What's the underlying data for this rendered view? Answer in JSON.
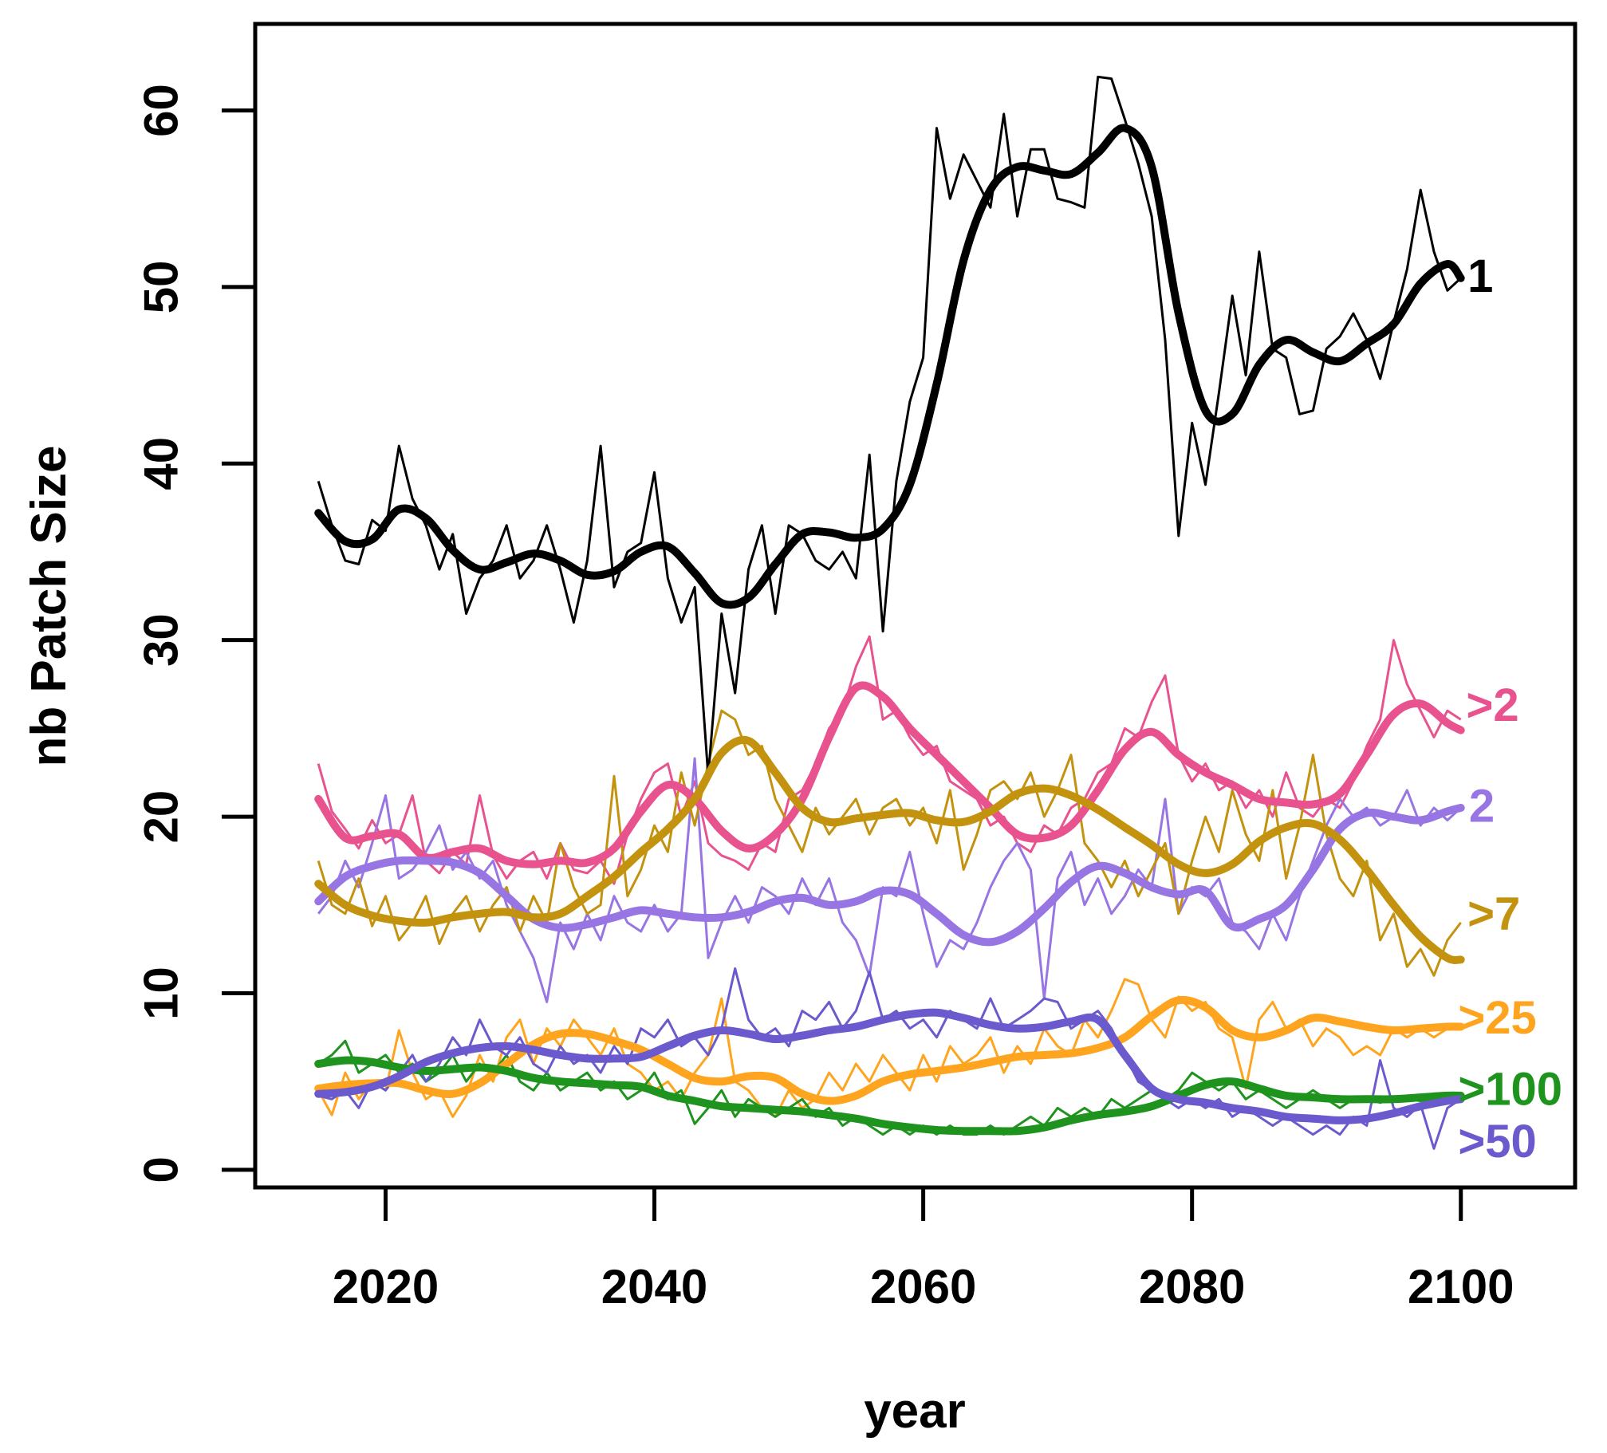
{
  "chart_data": {
    "type": "line",
    "title": "",
    "xlabel": "year",
    "ylabel": "nb Patch Size",
    "x_ticks": [
      2020,
      2040,
      2060,
      2080,
      2100
    ],
    "y_ticks": [
      0,
      10,
      20,
      30,
      40,
      50,
      60
    ],
    "xlim": [
      2010.3,
      2108.5
    ],
    "ylim": [
      -1.0,
      64.9
    ],
    "grid": "off",
    "legend_position": "right-edge-inline",
    "x": [
      2015,
      2016,
      2017,
      2018,
      2019,
      2020,
      2021,
      2022,
      2023,
      2024,
      2025,
      2026,
      2027,
      2028,
      2029,
      2030,
      2031,
      2032,
      2033,
      2034,
      2035,
      2036,
      2037,
      2038,
      2039,
      2040,
      2041,
      2042,
      2043,
      2044,
      2045,
      2046,
      2047,
      2048,
      2049,
      2050,
      2051,
      2052,
      2053,
      2054,
      2055,
      2056,
      2057,
      2058,
      2059,
      2060,
      2061,
      2062,
      2063,
      2064,
      2065,
      2066,
      2067,
      2068,
      2069,
      2070,
      2071,
      2072,
      2073,
      2074,
      2075,
      2076,
      2077,
      2078,
      2079,
      2080,
      2081,
      2082,
      2083,
      2084,
      2085,
      2086,
      2087,
      2088,
      2089,
      2090,
      2091,
      2092,
      2093,
      2094,
      2095,
      2096,
      2097,
      2098,
      2099,
      2100
    ],
    "smooth_x": [
      2015,
      2017,
      2019,
      2021,
      2023,
      2025,
      2027,
      2029,
      2031,
      2033,
      2035,
      2037,
      2039,
      2041,
      2043,
      2045,
      2047,
      2049,
      2051,
      2053,
      2055,
      2057,
      2059,
      2061,
      2063,
      2065,
      2067,
      2069,
      2071,
      2073,
      2075,
      2077,
      2079,
      2081,
      2083,
      2085,
      2087,
      2089,
      2091,
      2093,
      2095,
      2097,
      2099,
      2100
    ],
    "series": [
      {
        "name": "gt2",
        "label": ">2",
        "color": "#E8538F",
        "label_pos": {
          "year": 2100.4,
          "value": 26.3
        },
        "thin": [
          23.0,
          20.3,
          19.3,
          18.2,
          19.8,
          18.5,
          19.0,
          21.2,
          17.5,
          16.8,
          18.0,
          17.3,
          21.2,
          17.8,
          16.5,
          17.5,
          18.0,
          16.5,
          18.5,
          17.0,
          16.8,
          17.5,
          16.2,
          19.0,
          21.0,
          22.5,
          23.0,
          20.0,
          22.0,
          18.5,
          17.8,
          17.5,
          17.0,
          18.5,
          18.0,
          21.0,
          21.5,
          23.0,
          25.0,
          26.0,
          28.5,
          30.2,
          25.5,
          26.0,
          24.5,
          23.5,
          24.0,
          22.0,
          21.5,
          21.0,
          19.5,
          20.0,
          18.5,
          18.0,
          19.5,
          19.0,
          20.5,
          21.0,
          22.5,
          23.0,
          25.0,
          24.5,
          26.5,
          28.0,
          23.5,
          22.0,
          23.0,
          21.5,
          22.0,
          20.5,
          21.5,
          20.0,
          22.5,
          20.5,
          20.0,
          21.0,
          20.5,
          22.0,
          24.0,
          25.5,
          30.0,
          27.5,
          26.0,
          24.5,
          26.0,
          25.5
        ],
        "smooth": [
          21.0,
          18.8,
          18.9,
          19.0,
          17.7,
          18.0,
          18.2,
          17.5,
          17.3,
          17.5,
          17.4,
          18.2,
          20.3,
          21.8,
          21.0,
          19.2,
          18.2,
          19.0,
          21.0,
          24.5,
          27.3,
          26.8,
          25.0,
          23.5,
          22.0,
          20.5,
          19.0,
          18.8,
          19.5,
          21.5,
          23.8,
          24.8,
          23.5,
          22.5,
          21.8,
          21.0,
          20.8,
          20.7,
          21.3,
          23.5,
          25.8,
          26.4,
          25.3,
          24.9
        ]
      },
      {
        "name": "2",
        "label": "2",
        "color": "#9775E3",
        "label_pos": {
          "year": 2100.6,
          "value": 20.6
        },
        "thin": [
          14.5,
          15.5,
          17.5,
          16.0,
          18.5,
          21.2,
          16.5,
          17.0,
          18.0,
          19.5,
          17.0,
          18.0,
          16.5,
          17.5,
          15.0,
          13.5,
          12.0,
          9.5,
          14.0,
          12.5,
          14.5,
          13.0,
          15.5,
          14.0,
          13.5,
          15.0,
          13.5,
          14.5,
          23.3,
          12.0,
          14.0,
          15.5,
          14.0,
          16.0,
          15.5,
          14.5,
          16.5,
          15.0,
          16.5,
          14.0,
          13.0,
          11.0,
          16.0,
          15.5,
          18.0,
          14.5,
          11.5,
          13.0,
          12.5,
          14.0,
          16.0,
          17.5,
          18.5,
          17.0,
          9.7,
          16.5,
          18.0,
          15.0,
          16.5,
          14.5,
          15.5,
          17.0,
          16.0,
          21.0,
          14.5,
          16.0,
          15.5,
          16.5,
          14.0,
          13.5,
          12.5,
          14.5,
          13.0,
          15.5,
          17.5,
          19.5,
          21.0,
          20.0,
          20.5,
          19.5,
          20.0,
          21.5,
          19.5,
          20.5,
          19.8,
          20.5
        ],
        "smooth": [
          15.2,
          16.6,
          17.2,
          17.5,
          17.5,
          17.4,
          16.8,
          15.5,
          14.2,
          13.7,
          13.9,
          14.3,
          14.7,
          14.5,
          14.3,
          14.3,
          14.6,
          15.2,
          15.4,
          15.0,
          15.2,
          15.8,
          15.6,
          14.5,
          13.3,
          12.9,
          13.5,
          14.8,
          16.3,
          17.2,
          16.8,
          16.0,
          15.6,
          15.8,
          13.8,
          14.2,
          15.0,
          17.0,
          19.3,
          20.2,
          20.0,
          19.8,
          20.3,
          20.5
        ]
      },
      {
        "name": "gt7",
        "label": ">7",
        "color": "#C3920E",
        "label_pos": {
          "year": 2100.5,
          "value": 14.5
        },
        "thin": [
          17.5,
          15.0,
          14.5,
          16.5,
          13.8,
          15.5,
          13.0,
          14.0,
          15.5,
          12.8,
          14.5,
          15.5,
          13.5,
          15.0,
          16.0,
          13.5,
          15.5,
          14.0,
          18.5,
          16.0,
          14.5,
          15.0,
          22.3,
          15.5,
          17.0,
          19.5,
          18.0,
          22.5,
          19.5,
          23.0,
          26.0,
          25.5,
          23.5,
          24.0,
          21.0,
          19.5,
          18.0,
          20.5,
          19.0,
          20.0,
          21.0,
          19.0,
          20.5,
          21.0,
          19.5,
          20.5,
          18.5,
          21.5,
          17.0,
          19.0,
          21.5,
          22.0,
          21.0,
          22.5,
          20.0,
          21.5,
          23.5,
          18.5,
          17.5,
          16.0,
          17.5,
          15.5,
          17.0,
          18.5,
          14.5,
          17.5,
          20.0,
          18.0,
          21.5,
          19.0,
          17.5,
          21.5,
          16.5,
          19.5,
          23.5,
          19.0,
          16.5,
          15.5,
          17.5,
          13.0,
          14.5,
          11.5,
          12.5,
          11.0,
          13.0,
          14.0
        ],
        "smooth": [
          16.2,
          15.0,
          14.4,
          14.1,
          14.0,
          14.3,
          14.5,
          14.6,
          14.3,
          14.5,
          15.5,
          16.6,
          18.0,
          19.3,
          21.0,
          23.6,
          24.3,
          22.5,
          20.5,
          19.7,
          19.9,
          20.1,
          20.2,
          19.8,
          19.7,
          20.3,
          21.3,
          21.6,
          21.2,
          20.4,
          19.4,
          18.4,
          17.3,
          16.8,
          17.3,
          18.6,
          19.4,
          19.6,
          18.7,
          17.0,
          15.0,
          13.2,
          12.0,
          11.9
        ]
      },
      {
        "name": "gt25",
        "label": ">25",
        "color": "#FFA41E",
        "label_pos": {
          "year": 2099.8,
          "value": 8.6
        },
        "thin": [
          4.5,
          3.1,
          5.5,
          4.0,
          5.0,
          4.5,
          7.9,
          5.5,
          4.0,
          4.5,
          3.0,
          4.2,
          6.5,
          5.0,
          7.5,
          8.5,
          6.0,
          8.0,
          7.0,
          8.5,
          7.5,
          6.5,
          8.0,
          6.0,
          5.5,
          4.5,
          5.0,
          4.0,
          5.5,
          6.5,
          9.7,
          5.0,
          4.5,
          3.5,
          3.0,
          4.5,
          3.5,
          4.0,
          5.5,
          4.5,
          6.0,
          5.0,
          6.5,
          5.5,
          4.5,
          6.5,
          5.0,
          7.0,
          6.0,
          6.5,
          7.5,
          5.5,
          7.0,
          6.0,
          8.0,
          7.0,
          6.5,
          8.5,
          7.5,
          9.0,
          10.8,
          10.5,
          8.5,
          7.5,
          9.8,
          9.0,
          9.5,
          8.0,
          7.5,
          4.6,
          8.5,
          9.5,
          8.0,
          8.5,
          7.0,
          8.0,
          7.5,
          6.5,
          7.0,
          6.5,
          8.0,
          7.5,
          8.0,
          7.5,
          8.0,
          8.0
        ],
        "smooth": [
          4.6,
          4.8,
          4.9,
          4.9,
          4.5,
          4.3,
          4.9,
          6.0,
          7.1,
          7.7,
          7.7,
          7.3,
          6.8,
          6.0,
          5.2,
          5.0,
          5.3,
          5.2,
          4.3,
          3.9,
          4.2,
          5.0,
          5.4,
          5.6,
          5.8,
          6.1,
          6.4,
          6.5,
          6.6,
          6.9,
          7.5,
          8.7,
          9.6,
          9.2,
          7.9,
          7.5,
          7.9,
          8.6,
          8.4,
          8.1,
          7.9,
          8.0,
          8.1,
          8.1
        ]
      },
      {
        "name": "gt100",
        "label": ">100",
        "color": "#1E941E",
        "label_pos": {
          "year": 2099.8,
          "value": 4.55
        },
        "thin": [
          6.0,
          6.5,
          7.3,
          5.5,
          6.0,
          6.5,
          5.5,
          6.0,
          5.0,
          5.5,
          6.5,
          5.0,
          6.0,
          5.5,
          6.5,
          5.0,
          4.5,
          5.5,
          4.5,
          5.0,
          5.5,
          4.5,
          5.0,
          4.0,
          4.5,
          5.5,
          4.0,
          4.5,
          2.6,
          3.5,
          4.5,
          3.0,
          4.0,
          3.5,
          3.0,
          3.5,
          4.0,
          3.0,
          3.5,
          2.5,
          3.0,
          2.5,
          2.0,
          2.5,
          2.0,
          2.5,
          2.0,
          2.5,
          2.0,
          2.0,
          2.5,
          2.0,
          2.5,
          3.0,
          2.5,
          3.5,
          3.0,
          3.5,
          3.0,
          4.0,
          3.5,
          4.0,
          4.5,
          4.0,
          4.5,
          5.5,
          5.0,
          4.5,
          5.0,
          4.0,
          4.5,
          4.0,
          3.5,
          4.0,
          4.5,
          4.0,
          3.5,
          4.0,
          4.0,
          3.8,
          4.0,
          4.0,
          3.9,
          4.0,
          3.9,
          3.9
        ],
        "smooth": [
          6.0,
          6.2,
          6.1,
          5.8,
          5.6,
          5.7,
          5.8,
          5.6,
          5.2,
          5.0,
          4.9,
          4.8,
          4.7,
          4.2,
          3.9,
          3.6,
          3.5,
          3.4,
          3.3,
          3.1,
          2.9,
          2.6,
          2.4,
          2.25,
          2.2,
          2.2,
          2.2,
          2.4,
          2.8,
          3.1,
          3.3,
          3.6,
          4.2,
          4.8,
          5.0,
          4.6,
          4.2,
          4.1,
          4.0,
          4.0,
          4.0,
          4.1,
          4.2,
          4.2
        ]
      },
      {
        "name": "gt50",
        "label": ">50",
        "color": "#6A5ACD",
        "label_pos": {
          "year": 2099.8,
          "value": 1.6
        },
        "thin": [
          4.2,
          4.0,
          4.5,
          3.5,
          5.0,
          4.5,
          5.5,
          6.5,
          5.0,
          6.0,
          7.5,
          6.5,
          8.5,
          7.0,
          6.5,
          7.5,
          6.0,
          5.5,
          7.0,
          6.0,
          6.5,
          5.5,
          7.0,
          6.0,
          8.0,
          7.5,
          8.5,
          7.0,
          7.5,
          6.5,
          8.0,
          11.4,
          8.5,
          7.5,
          8.0,
          7.0,
          9.0,
          8.5,
          9.5,
          8.0,
          9.0,
          11.2,
          8.5,
          9.0,
          8.0,
          8.5,
          7.5,
          9.0,
          8.5,
          8.0,
          9.7,
          8.0,
          8.5,
          9.0,
          9.7,
          9.5,
          8.0,
          8.5,
          9.0,
          8.0,
          6.5,
          5.0,
          4.5,
          4.0,
          3.5,
          4.0,
          3.5,
          4.0,
          3.0,
          3.5,
          3.0,
          2.5,
          3.0,
          2.5,
          2.0,
          2.5,
          2.0,
          3.0,
          2.5,
          6.2,
          3.5,
          3.0,
          3.7,
          1.2,
          3.5,
          4.0
        ],
        "smooth": [
          4.3,
          4.4,
          4.7,
          5.3,
          6.1,
          6.6,
          6.9,
          7.0,
          6.8,
          6.5,
          6.3,
          6.3,
          6.4,
          7.0,
          7.6,
          7.9,
          7.7,
          7.4,
          7.6,
          7.9,
          8.1,
          8.5,
          8.8,
          8.9,
          8.6,
          8.2,
          8.0,
          8.1,
          8.4,
          8.5,
          6.5,
          4.6,
          4.0,
          3.8,
          3.5,
          3.3,
          3.0,
          2.9,
          2.8,
          2.9,
          3.2,
          3.6,
          3.9,
          4.0
        ]
      },
      {
        "name": "1",
        "label": "1",
        "color": "#000000",
        "label_pos": {
          "year": 2100.5,
          "value": 50.6
        },
        "thin": [
          39.0,
          36.5,
          34.5,
          34.3,
          36.8,
          36.2,
          41.0,
          38.0,
          36.5,
          34.0,
          36.0,
          31.5,
          33.5,
          34.5,
          36.5,
          33.5,
          34.5,
          36.5,
          34.0,
          31.0,
          34.5,
          41.0,
          33.0,
          35.0,
          35.5,
          39.5,
          33.5,
          31.0,
          33.0,
          22.3,
          31.5,
          27.0,
          34.0,
          36.5,
          31.5,
          36.5,
          36.0,
          34.5,
          34.0,
          35.0,
          33.5,
          40.5,
          30.5,
          39.0,
          43.5,
          46.0,
          59.0,
          55.0,
          57.5,
          56.0,
          54.5,
          59.8,
          54.0,
          57.8,
          57.8,
          55.0,
          54.8,
          54.5,
          61.9,
          61.8,
          59.5,
          57.0,
          54.0,
          47.0,
          35.9,
          42.3,
          38.8,
          44.0,
          49.5,
          45.0,
          52.0,
          46.5,
          46.0,
          42.8,
          43.0,
          46.5,
          47.2,
          48.5,
          47.0,
          44.8,
          48.0,
          51.0,
          55.5,
          52.0,
          49.8,
          50.5
        ],
        "smooth": [
          37.2,
          35.6,
          35.7,
          37.4,
          36.9,
          35.1,
          34.0,
          34.4,
          34.9,
          34.5,
          33.7,
          33.9,
          35.0,
          35.3,
          33.8,
          32.1,
          32.4,
          34.3,
          36.0,
          36.1,
          35.8,
          36.3,
          38.8,
          44.5,
          51.5,
          55.5,
          56.8,
          56.6,
          56.4,
          57.6,
          59.0,
          56.8,
          48.5,
          43.0,
          42.8,
          45.6,
          47.0,
          46.3,
          45.8,
          46.8,
          47.9,
          50.2,
          51.3,
          50.5
        ]
      }
    ],
    "line_styles": {
      "thin_width": 3,
      "thick_width": 10
    }
  }
}
